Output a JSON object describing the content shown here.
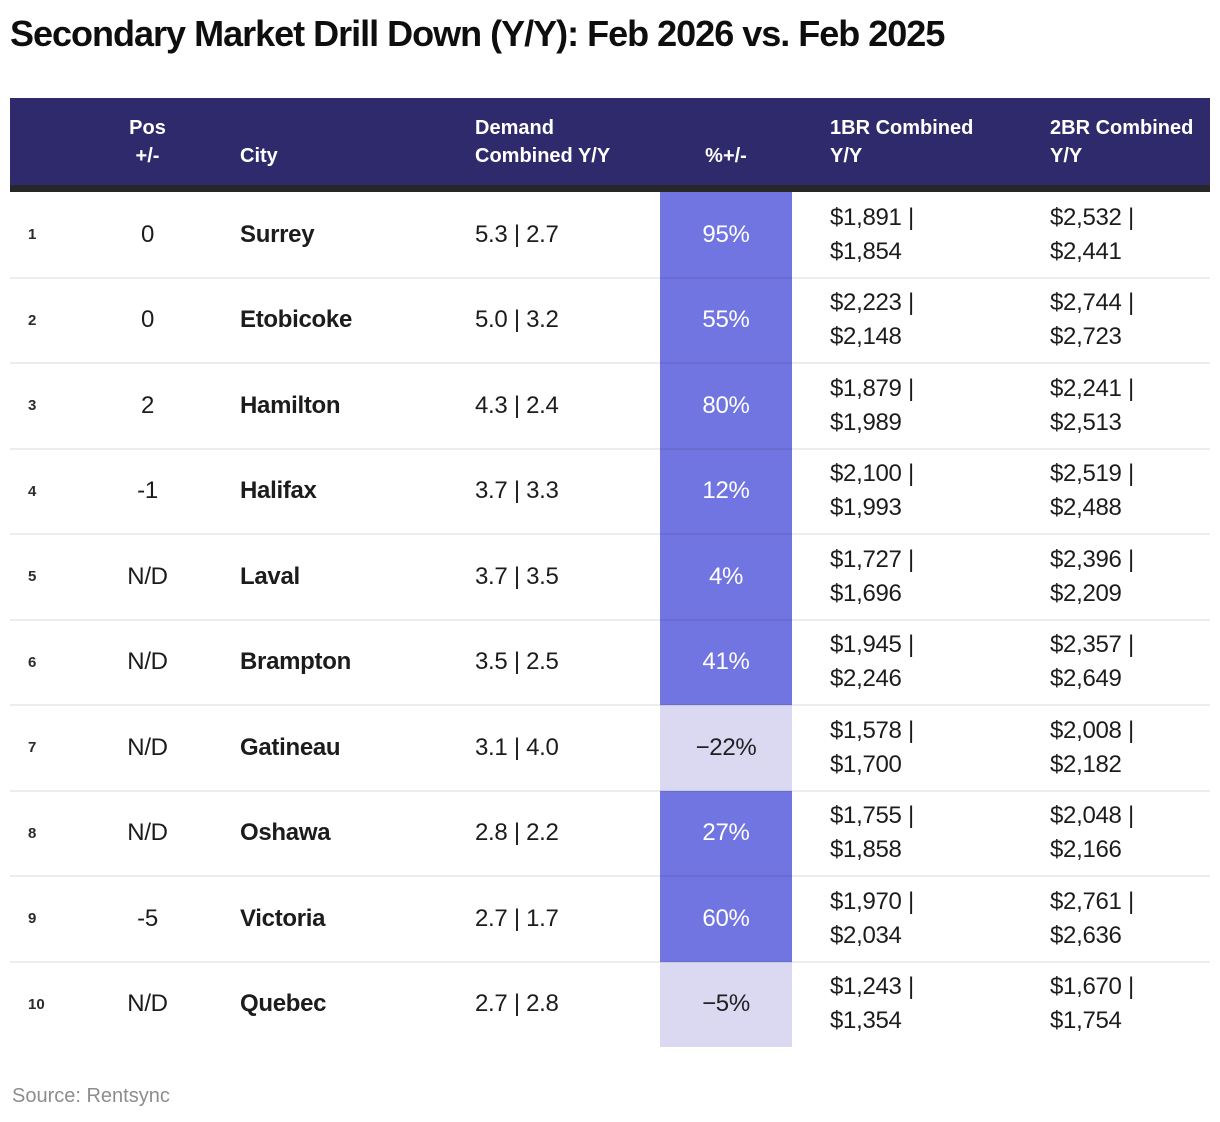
{
  "title": "Secondary Market Drill Down (Y/Y): Feb 2026 vs. Feb 2025",
  "source_note": "Source: Rentsync",
  "colors": {
    "header_bg": "#2e2a6b",
    "header_divider": "#272727",
    "pct_positive_bg": "#7175e1",
    "pct_negative_bg": "#dbd9f1",
    "pct_positive_text": "#ffffff",
    "pct_negative_text": "#202020",
    "body_text": "#1c1c1c",
    "source_text": "#8d8d8d"
  },
  "chart_data": {
    "type": "table",
    "title": "Secondary Market Drill Down (Y/Y): Feb 2026 vs. Feb 2025",
    "header": {
      "pos": [
        "Pos",
        "+/-"
      ],
      "city": "City",
      "demand": [
        "Demand",
        "Combined Y/Y"
      ],
      "pct": "%+/-",
      "br1": [
        "1BR Combined",
        "Y/Y"
      ],
      "br2": [
        "2BR Combined",
        "Y/Y"
      ]
    },
    "rows": [
      {
        "rank": "1",
        "pos_change": "0",
        "city": "Surrey",
        "demand_combined": "5.3 | 2.7",
        "pct_change": "95%",
        "pct_change_value": 95,
        "br1_combined": [
          "$1,891 |",
          "$1,854"
        ],
        "br2_combined": [
          "$2,532 |",
          "$2,441"
        ]
      },
      {
        "rank": "2",
        "pos_change": "0",
        "city": "Etobicoke",
        "demand_combined": "5.0 | 3.2",
        "pct_change": "55%",
        "pct_change_value": 55,
        "br1_combined": [
          "$2,223 |",
          "$2,148"
        ],
        "br2_combined": [
          "$2,744 |",
          "$2,723"
        ]
      },
      {
        "rank": "3",
        "pos_change": "2",
        "city": "Hamilton",
        "demand_combined": "4.3 | 2.4",
        "pct_change": "80%",
        "pct_change_value": 80,
        "br1_combined": [
          "$1,879 |",
          "$1,989"
        ],
        "br2_combined": [
          "$2,241 |",
          "$2,513"
        ]
      },
      {
        "rank": "4",
        "pos_change": "-1",
        "city": "Halifax",
        "demand_combined": "3.7 | 3.3",
        "pct_change": "12%",
        "pct_change_value": 12,
        "br1_combined": [
          "$2,100 |",
          "$1,993"
        ],
        "br2_combined": [
          "$2,519 |",
          "$2,488"
        ]
      },
      {
        "rank": "5",
        "pos_change": "N/D",
        "city": "Laval",
        "demand_combined": "3.7 | 3.5",
        "pct_change": "4%",
        "pct_change_value": 4,
        "br1_combined": [
          "$1,727 |",
          "$1,696"
        ],
        "br2_combined": [
          "$2,396 |",
          "$2,209"
        ]
      },
      {
        "rank": "6",
        "pos_change": "N/D",
        "city": "Brampton",
        "demand_combined": "3.5 | 2.5",
        "pct_change": "41%",
        "pct_change_value": 41,
        "br1_combined": [
          "$1,945 |",
          "$2,246"
        ],
        "br2_combined": [
          "$2,357 |",
          "$2,649"
        ]
      },
      {
        "rank": "7",
        "pos_change": "N/D",
        "city": "Gatineau",
        "demand_combined": "3.1 | 4.0",
        "pct_change": "−22%",
        "pct_change_value": -22,
        "br1_combined": [
          "$1,578 |",
          "$1,700"
        ],
        "br2_combined": [
          "$2,008 |",
          "$2,182"
        ]
      },
      {
        "rank": "8",
        "pos_change": "N/D",
        "city": "Oshawa",
        "demand_combined": "2.8 | 2.2",
        "pct_change": "27%",
        "pct_change_value": 27,
        "br1_combined": [
          "$1,755 |",
          "$1,858"
        ],
        "br2_combined": [
          "$2,048 |",
          "$2,166"
        ]
      },
      {
        "rank": "9",
        "pos_change": "-5",
        "city": "Victoria",
        "demand_combined": "2.7 | 1.7",
        "pct_change": "60%",
        "pct_change_value": 60,
        "br1_combined": [
          "$1,970 |",
          "$2,034"
        ],
        "br2_combined": [
          "$2,761 |",
          "$2,636"
        ]
      },
      {
        "rank": "10",
        "pos_change": "N/D",
        "city": "Quebec",
        "demand_combined": "2.7 | 2.8",
        "pct_change": "−5%",
        "pct_change_value": -5,
        "br1_combined": [
          "$1,243 |",
          "$1,354"
        ],
        "br2_combined": [
          "$1,670 |",
          "$1,754"
        ]
      }
    ]
  }
}
